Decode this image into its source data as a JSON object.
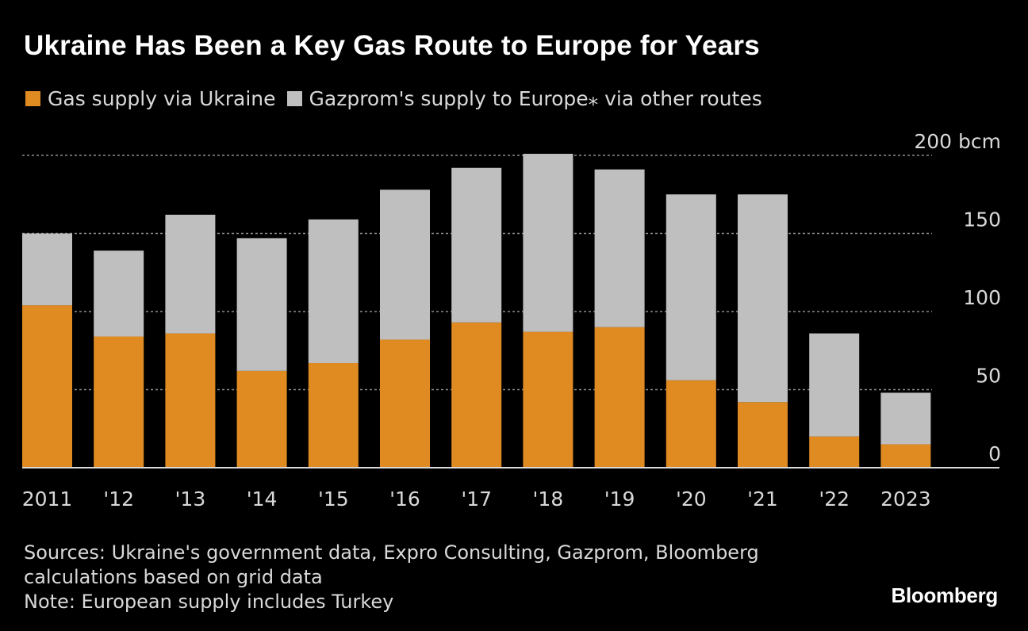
{
  "chart_data": {
    "type": "bar",
    "stacked": true,
    "title": "Ukraine Has Been a Key Gas Route to Europe for Years",
    "categories": [
      "2011",
      "'12",
      "'13",
      "'14",
      "'15",
      "'16",
      "'17",
      "'18",
      "'19",
      "'20",
      "'21",
      "'22",
      "2023"
    ],
    "series": [
      {
        "name": "Gas supply via Ukraine",
        "color": "#e08b22",
        "values": [
          104,
          84,
          86,
          62,
          67,
          82,
          93,
          87,
          90,
          56,
          42,
          20,
          15
        ]
      },
      {
        "name": "Gazprom's supply to Europe⁎ via other routes",
        "color": "#bfbfbf",
        "values": [
          46,
          55,
          76,
          85,
          92,
          96,
          99,
          114,
          101,
          119,
          133,
          66,
          33
        ]
      }
    ],
    "y_tick_labels": [
      "200 bcm",
      "150",
      "100",
      "50",
      "0"
    ],
    "y_tick_values": [
      200,
      150,
      100,
      50,
      0
    ],
    "ylim": [
      0,
      200
    ],
    "grid": true,
    "legend_position": "top-left"
  },
  "footer": {
    "sources_line1": "Sources: Ukraine's government data, Expro Consulting, Gazprom, Bloomberg",
    "sources_line2": "calculations based on grid data",
    "note": "Note: European supply includes Turkey"
  },
  "brand": "Bloomberg"
}
